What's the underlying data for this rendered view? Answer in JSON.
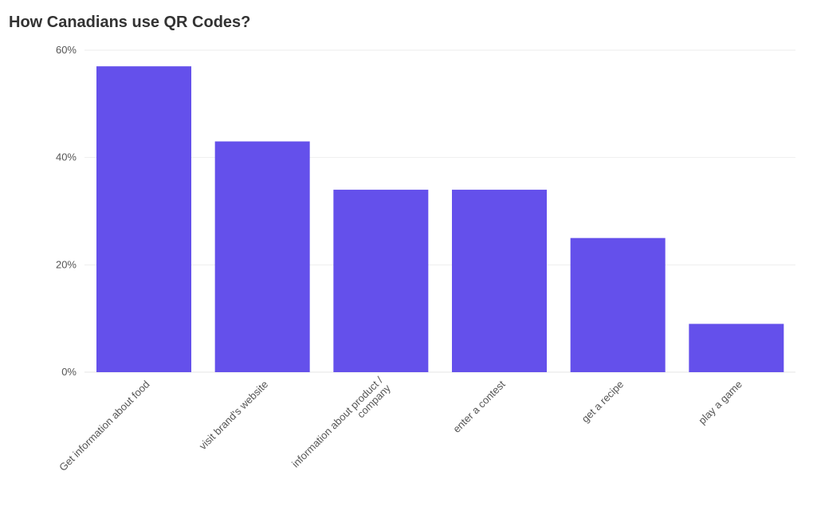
{
  "chart_data": {
    "type": "bar",
    "title": "How Canadians use QR Codes?",
    "xlabel": "",
    "ylabel": "",
    "categories": [
      [
        "Get information about food"
      ],
      [
        "visit brand's website"
      ],
      [
        "information about product /",
        "company"
      ],
      [
        "enter a contest"
      ],
      [
        "get a recipe"
      ],
      [
        "play a game"
      ]
    ],
    "values": [
      57,
      43,
      34,
      34,
      25,
      9
    ],
    "ylim": [
      0,
      60
    ],
    "yticks": [
      {
        "value": 0,
        "label": "0%"
      },
      {
        "value": 20,
        "label": "20%"
      },
      {
        "value": 40,
        "label": "40%"
      },
      {
        "value": 60,
        "label": "60%"
      }
    ],
    "bar_color": "#6450EB",
    "grid": true,
    "legend": "none"
  }
}
